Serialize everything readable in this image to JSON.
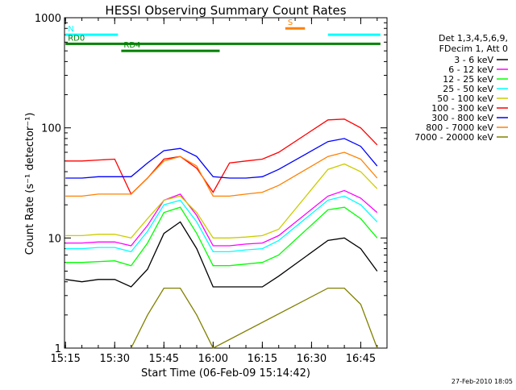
{
  "chart_data": {
    "type": "line",
    "title": "HESSI Observing Summary Count Rates",
    "xlabel": "Start Time (06-Feb-09 15:14:42)",
    "ylabel": "Count Rate (s⁻¹ detector⁻¹)",
    "yscale": "log",
    "ylim": [
      1,
      1000
    ],
    "xlim": [
      "15:14:42",
      "16:53:00"
    ],
    "x_tick_labels": [
      "15:15",
      "15:30",
      "15:45",
      "16:00",
      "16:15",
      "16:30",
      "16:45"
    ],
    "y_tick_labels": [
      "1",
      "10",
      "100",
      "1000"
    ],
    "timestamp": "27-Feb-2010 18:05",
    "legend": {
      "placement": "right",
      "header": [
        "Det 1,3,4,5,6,9,",
        "FDecim 1, Att 0"
      ]
    },
    "series": [
      {
        "name": "3 - 6 keV",
        "color": "#000000",
        "x": [
          "15:15",
          "15:20",
          "15:25",
          "15:30",
          "15:35",
          "15:40",
          "15:45",
          "15:50",
          "15:55",
          "16:00",
          "16:05",
          "16:10",
          "16:15",
          "16:20",
          "16:35",
          "16:40",
          "16:45",
          "16:50"
        ],
        "values": [
          4.2,
          4.0,
          4.2,
          4.2,
          3.6,
          5.2,
          11.0,
          14.0,
          8.0,
          3.6,
          3.6,
          3.6,
          3.6,
          4.5,
          9.5,
          10.0,
          8.0,
          5.0
        ]
      },
      {
        "name": "6 - 12 keV",
        "color": "#ff00ff",
        "x": [
          "15:15",
          "15:20",
          "15:25",
          "15:30",
          "15:35",
          "15:40",
          "15:45",
          "15:50",
          "15:55",
          "16:00",
          "16:05",
          "16:10",
          "16:15",
          "16:20",
          "16:35",
          "16:40",
          "16:45",
          "16:50"
        ],
        "values": [
          9.0,
          9.0,
          9.2,
          9.2,
          8.5,
          13.0,
          22.0,
          25.0,
          16.0,
          8.5,
          8.5,
          8.8,
          9.0,
          10.5,
          24.0,
          27.0,
          23.0,
          17.0
        ]
      },
      {
        "name": "12 - 25 keV",
        "color": "#00ff00",
        "x": [
          "15:15",
          "15:20",
          "15:25",
          "15:30",
          "15:35",
          "15:40",
          "15:45",
          "15:50",
          "15:55",
          "16:00",
          "16:05",
          "16:10",
          "16:15",
          "16:20",
          "16:35",
          "16:40",
          "16:45",
          "16:50"
        ],
        "values": [
          6.0,
          6.0,
          6.1,
          6.2,
          5.6,
          9.0,
          17.0,
          19.0,
          11.0,
          5.6,
          5.6,
          5.8,
          6.0,
          7.0,
          18.0,
          19.0,
          15.0,
          10.0
        ]
      },
      {
        "name": "25 - 50 keV",
        "color": "#00ffff",
        "x": [
          "15:15",
          "15:20",
          "15:25",
          "15:30",
          "15:35",
          "15:40",
          "15:45",
          "15:50",
          "15:55",
          "16:00",
          "16:05",
          "16:10",
          "16:15",
          "16:20",
          "16:35",
          "16:40",
          "16:45",
          "16:50"
        ],
        "values": [
          8.0,
          8.0,
          8.2,
          8.2,
          7.5,
          11.5,
          20.0,
          22.0,
          14.0,
          7.5,
          7.5,
          7.8,
          8.0,
          9.5,
          22.0,
          24.0,
          20.0,
          14.0
        ]
      },
      {
        "name": "50 - 100 keV",
        "color": "#cccc00",
        "x": [
          "15:15",
          "15:20",
          "15:25",
          "15:30",
          "15:35",
          "15:40",
          "15:45",
          "15:50",
          "15:55",
          "16:00",
          "16:05",
          "16:10",
          "16:15",
          "16:20",
          "16:35",
          "16:40",
          "16:45",
          "16:50"
        ],
        "values": [
          10.5,
          10.5,
          10.8,
          10.8,
          10.0,
          15.0,
          22.0,
          24.0,
          17.0,
          10.0,
          10.0,
          10.2,
          10.5,
          12.0,
          42.0,
          47.0,
          40.0,
          28.0
        ]
      },
      {
        "name": "100 - 300 keV",
        "color": "#ff0000",
        "x": [
          "15:15",
          "15:20",
          "15:25",
          "15:30",
          "15:35",
          "15:40",
          "15:45",
          "15:50",
          "15:55",
          "16:00",
          "16:05",
          "16:10",
          "16:15",
          "16:20",
          "16:35",
          "16:40",
          "16:45",
          "16:50"
        ],
        "values": [
          50,
          50,
          51,
          52,
          25,
          35,
          52,
          55,
          43,
          26,
          48,
          50,
          52,
          60,
          118,
          120,
          100,
          70
        ]
      },
      {
        "name": "300 - 800 keV",
        "color": "#0000ff",
        "x": [
          "15:15",
          "15:20",
          "15:25",
          "15:30",
          "15:35",
          "15:40",
          "15:45",
          "15:50",
          "15:55",
          "16:00",
          "16:05",
          "16:10",
          "16:15",
          "16:20",
          "16:35",
          "16:40",
          "16:45",
          "16:50"
        ],
        "values": [
          35,
          35,
          36,
          36,
          36,
          48,
          62,
          65,
          55,
          36,
          35,
          35,
          36,
          42,
          75,
          80,
          68,
          45
        ]
      },
      {
        "name": "800 - 7000 keV",
        "color": "#ff8000",
        "x": [
          "15:15",
          "15:20",
          "15:25",
          "15:30",
          "15:35",
          "15:40",
          "15:45",
          "15:50",
          "15:55",
          "16:00",
          "16:05",
          "16:10",
          "16:15",
          "16:20",
          "16:35",
          "16:40",
          "16:45",
          "16:50"
        ],
        "values": [
          24,
          24,
          25,
          25,
          25,
          35,
          50,
          55,
          45,
          24,
          24,
          25,
          26,
          30,
          55,
          60,
          52,
          35
        ]
      },
      {
        "name": "7000 - 20000 keV",
        "color": "#808000",
        "x": [
          "15:35",
          "15:40",
          "15:45",
          "15:50",
          "15:55",
          "16:00",
          "16:35",
          "16:40",
          "16:45",
          "16:50"
        ],
        "values": [
          1.0,
          2.0,
          3.5,
          3.5,
          2.0,
          1.0,
          3.5,
          3.5,
          2.5,
          1.0
        ]
      }
    ],
    "flags": [
      {
        "label": "N",
        "color": "#00ffff",
        "y": 700,
        "segments": [
          [
            "15:15",
            "15:31"
          ],
          [
            "16:35",
            "16:51"
          ]
        ]
      },
      {
        "label": "RD0",
        "color": "#008000",
        "y": 580,
        "segments": [
          [
            "15:15",
            "16:02"
          ],
          [
            "16:02",
            "16:51"
          ]
        ]
      },
      {
        "label": "RD4",
        "color": "#008000",
        "y": 500,
        "segments": [
          [
            "15:32",
            "16:02"
          ]
        ]
      },
      {
        "label": "S",
        "color": "#ff8000",
        "y": 800,
        "segments": [
          [
            "16:22",
            "16:28"
          ]
        ]
      }
    ]
  }
}
